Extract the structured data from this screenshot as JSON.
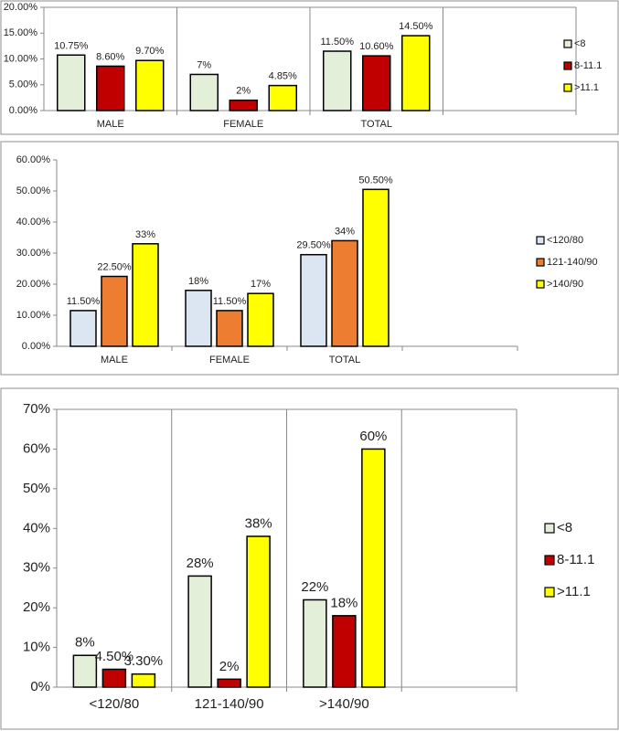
{
  "chart_data": [
    {
      "type": "bar",
      "categories": [
        "MALE",
        "FEMALE",
        "TOTAL",
        null
      ],
      "series": [
        {
          "name": "<8",
          "color": "#e3efd9",
          "values": [
            10.75,
            7,
            11.5,
            null
          ],
          "value_labels": [
            "10.75%",
            "7%",
            "11.50%",
            null
          ]
        },
        {
          "name": "8-11.1",
          "color": "#c00000",
          "values": [
            8.6,
            2,
            10.6,
            null
          ],
          "value_labels": [
            "8.60%",
            "2%",
            "10.60%",
            null
          ]
        },
        {
          "name": ">11.1",
          "color": "#ffff00",
          "values": [
            9.7,
            4.85,
            14.5,
            null
          ],
          "value_labels": [
            "9.70%",
            "4.85%",
            "14.50%",
            null
          ]
        }
      ],
      "ylim": [
        0,
        20
      ],
      "yticks": [
        {
          "value": 0,
          "label": "0.00%"
        },
        {
          "value": 5,
          "label": "5.00%"
        },
        {
          "value": 10,
          "label": "10.00%"
        },
        {
          "value": 15,
          "label": "15.00%"
        },
        {
          "value": 20,
          "label": "20.00%"
        }
      ],
      "category_grid": true,
      "legend": "right"
    },
    {
      "type": "bar",
      "categories": [
        "MALE",
        "FEMALE",
        "TOTAL",
        null
      ],
      "series": [
        {
          "name": "<120/80",
          "color": "#dce6f2",
          "values": [
            11.5,
            18,
            29.5,
            null
          ],
          "value_labels": [
            "11.50%",
            "18%",
            "29.50%",
            null
          ]
        },
        {
          "name": "121-140/90",
          "color": "#ed7d31",
          "values": [
            22.5,
            11.5,
            34,
            null
          ],
          "value_labels": [
            "22.50%",
            "11.50%",
            "34%",
            null
          ]
        },
        {
          "name": ">140/90",
          "color": "#ffff00",
          "values": [
            33,
            17,
            50.5,
            null
          ],
          "value_labels": [
            "33%",
            "17%",
            "50.50%",
            null
          ]
        }
      ],
      "ylim": [
        0,
        60
      ],
      "yticks": [
        {
          "value": 0,
          "label": "0.00%"
        },
        {
          "value": 10,
          "label": "10.00%"
        },
        {
          "value": 20,
          "label": "20.00%"
        },
        {
          "value": 30,
          "label": "30.00%"
        },
        {
          "value": 40,
          "label": "40.00%"
        },
        {
          "value": 50,
          "label": "50.00%"
        },
        {
          "value": 60,
          "label": "60.00%"
        }
      ],
      "category_grid": false,
      "legend": "right"
    },
    {
      "type": "bar",
      "categories": [
        "<120/80",
        "121-140/90",
        ">140/90",
        null
      ],
      "series": [
        {
          "name": "<8",
          "color": "#e3efd9",
          "values": [
            8,
            28,
            22,
            null
          ],
          "value_labels": [
            "8%",
            "28%",
            "22%",
            null
          ]
        },
        {
          "name": "8-11.1",
          "color": "#c00000",
          "values": [
            4.5,
            2,
            18,
            null
          ],
          "value_labels": [
            "4.50%",
            "2%",
            "18%",
            null
          ]
        },
        {
          "name": ">11.1",
          "color": "#ffff00",
          "values": [
            3.3,
            38,
            60,
            null
          ],
          "value_labels": [
            "3.30%",
            "38%",
            "60%",
            null
          ]
        }
      ],
      "ylim": [
        0,
        70
      ],
      "yticks": [
        {
          "value": 0,
          "label": "0%"
        },
        {
          "value": 10,
          "label": "10%"
        },
        {
          "value": 20,
          "label": "20%"
        },
        {
          "value": 30,
          "label": "30%"
        },
        {
          "value": 40,
          "label": "40%"
        },
        {
          "value": 50,
          "label": "50%"
        },
        {
          "value": 60,
          "label": "60%"
        },
        {
          "value": 70,
          "label": "70%"
        }
      ],
      "category_grid": true,
      "legend": "right"
    }
  ]
}
